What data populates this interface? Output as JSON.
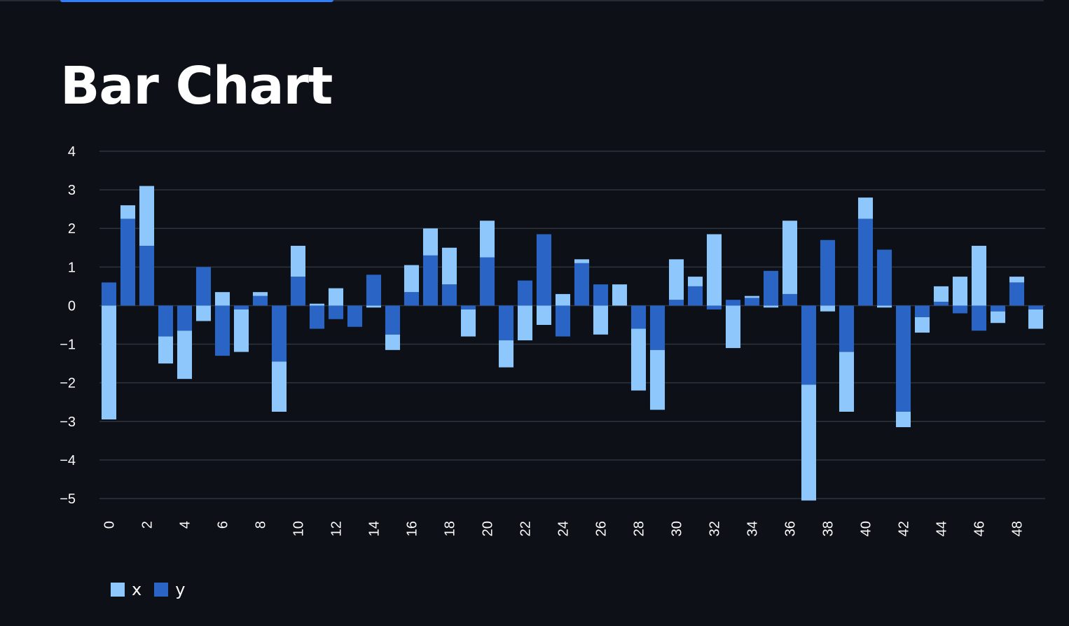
{
  "page": {
    "title": "Bar Chart"
  },
  "colors": {
    "background": "#0d1117",
    "grid": "#2e323c",
    "x": "#8ec7fb",
    "y": "#2a64c5",
    "tab_accent": "#2f7fff"
  },
  "chart_data": {
    "type": "bar",
    "stacked": true,
    "title": "",
    "xlabel": "",
    "ylabel": "",
    "ylim": [
      -5,
      4
    ],
    "yticks": [
      4,
      3,
      2,
      1,
      0,
      -1,
      -2,
      -3,
      -4,
      -5
    ],
    "ytick_labels": [
      "4",
      "3",
      "2",
      "1",
      "0",
      "−1",
      "−2",
      "−3",
      "−4",
      "−5"
    ],
    "xtick_labels": [
      "0",
      "2",
      "4",
      "6",
      "8",
      "10",
      "12",
      "14",
      "16",
      "18",
      "20",
      "22",
      "24",
      "26",
      "28",
      "30",
      "32",
      "34",
      "36",
      "38",
      "40",
      "42",
      "44",
      "46",
      "48"
    ],
    "grid": true,
    "legend_position": "bottom-left",
    "categories": [
      0,
      1,
      2,
      3,
      4,
      5,
      6,
      7,
      8,
      9,
      10,
      11,
      12,
      13,
      14,
      15,
      16,
      17,
      18,
      19,
      20,
      21,
      22,
      23,
      24,
      25,
      26,
      27,
      28,
      29,
      30,
      31,
      32,
      33,
      34,
      35,
      36,
      37,
      38,
      39,
      40,
      41,
      42,
      43,
      44,
      45,
      46,
      47,
      48,
      49
    ],
    "series": [
      {
        "name": "x",
        "values": [
          -2.95,
          0.35,
          1.55,
          -0.7,
          -1.25,
          -0.4,
          0.35,
          -1.1,
          0.1,
          -1.3,
          0.8,
          0.05,
          0.45,
          0.0,
          -0.05,
          -0.4,
          0.7,
          0.7,
          0.95,
          -0.7,
          0.95,
          -0.7,
          -0.9,
          -0.5,
          0.3,
          0.1,
          -0.75,
          0.55,
          -1.6,
          -1.55,
          1.05,
          0.25,
          1.85,
          -1.1,
          0.05,
          -0.05,
          1.9,
          -3.0,
          -0.15,
          -1.55,
          0.55,
          -0.05,
          -0.4,
          -0.4,
          0.4,
          0.75,
          1.55,
          -0.3,
          0.15,
          -0.5
        ]
      },
      {
        "name": "y",
        "values": [
          0.6,
          2.25,
          1.55,
          -0.8,
          -0.65,
          1.0,
          -1.3,
          -0.1,
          0.25,
          -1.45,
          0.75,
          -0.6,
          -0.35,
          -0.55,
          0.8,
          -0.75,
          0.35,
          1.3,
          0.55,
          -0.1,
          1.25,
          -0.9,
          0.65,
          1.85,
          -0.8,
          1.1,
          0.55,
          0.0,
          -0.6,
          -1.15,
          0.15,
          0.5,
          -0.1,
          0.15,
          0.2,
          0.9,
          0.3,
          -2.05,
          1.7,
          -1.2,
          2.25,
          1.45,
          -2.75,
          -0.3,
          0.1,
          -0.2,
          -0.65,
          -0.15,
          0.6,
          -0.1
        ]
      }
    ]
  },
  "legend": [
    {
      "label": "x",
      "color": "#8ec7fb"
    },
    {
      "label": "y",
      "color": "#2a64c5"
    }
  ]
}
